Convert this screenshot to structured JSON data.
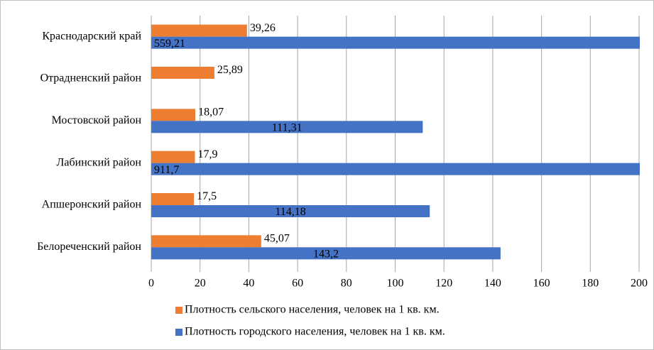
{
  "chart_data": {
    "type": "bar",
    "orientation": "horizontal",
    "categories": [
      "Краснодарский край",
      "Отрадненский район",
      "Мостовской район",
      "Лабинский район",
      "Апшеронский район",
      "Белореченский район"
    ],
    "series": [
      {
        "name": "Плотность сельского населения, человек на 1 кв. км.",
        "color": "#ed7d31",
        "values": [
          39.26,
          25.89,
          18.07,
          17.9,
          17.5,
          45.07
        ],
        "value_labels": [
          "39,26",
          "25,89",
          "18,07",
          "17,9",
          "17,5",
          "45,07"
        ]
      },
      {
        "name": "Плотность городского населения, человек на 1 кв. км.",
        "color": "#4472c4",
        "values": [
          559.21,
          null,
          111.31,
          911.7,
          114.18,
          143.2
        ],
        "value_labels": [
          "559,21",
          null,
          "111,31",
          "911,7",
          "114,18",
          "143,2"
        ]
      }
    ],
    "xlim": [
      0,
      200
    ],
    "xticks": [
      0,
      20,
      40,
      60,
      80,
      100,
      120,
      140,
      160,
      180,
      200
    ],
    "grid": true
  }
}
